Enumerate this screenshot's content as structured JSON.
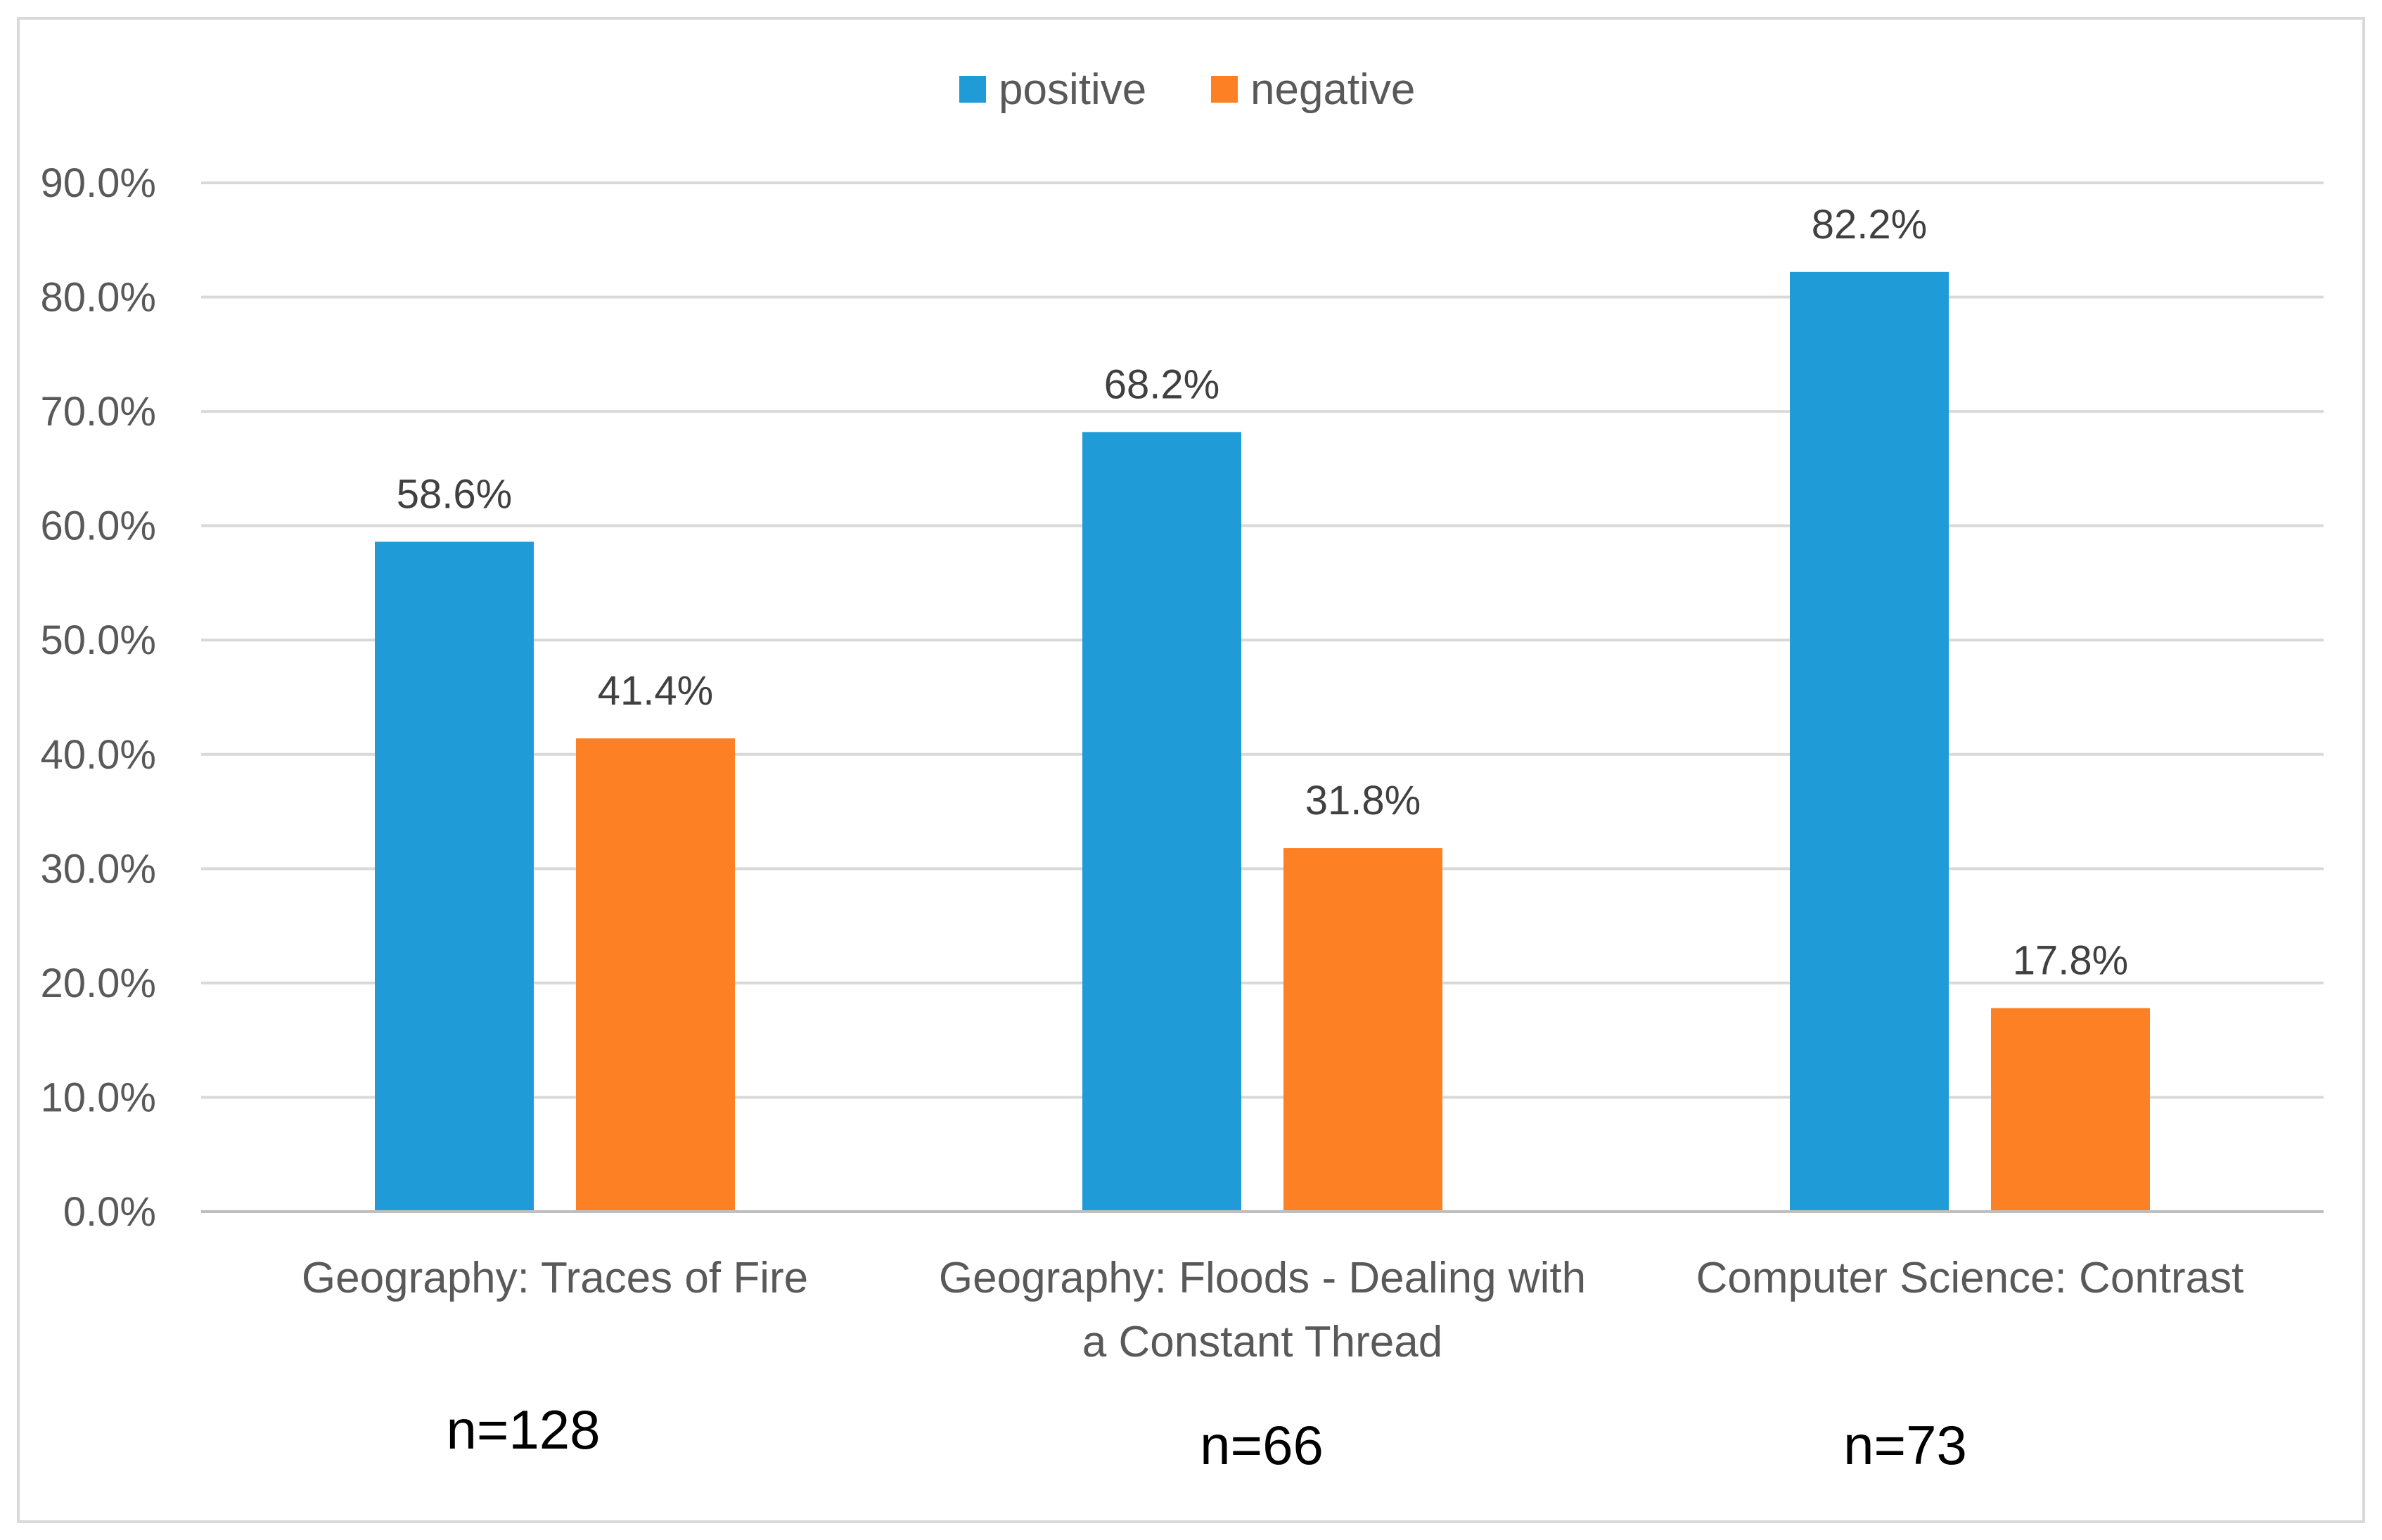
{
  "chart_data": {
    "type": "bar",
    "title": "",
    "xlabel": "",
    "ylabel": "",
    "ylim": [
      0,
      90
    ],
    "y_ticks": [
      "0.0%",
      "10.0%",
      "20.0%",
      "30.0%",
      "40.0%",
      "50.0%",
      "60.0%",
      "70.0%",
      "80.0%",
      "90.0%"
    ],
    "y_tick_values": [
      0,
      10,
      20,
      30,
      40,
      50,
      60,
      70,
      80,
      90
    ],
    "grid": true,
    "legend_position": "top-center",
    "categories": [
      [
        "Geography: Traces of Fire"
      ],
      [
        "Geography: Floods - Dealing with",
        "a Constant Thread"
      ],
      [
        "Computer Science: Contrast"
      ]
    ],
    "sample_sizes": [
      "n=128",
      "n=66",
      "n=73"
    ],
    "series": [
      {
        "name": "positive",
        "color": "#1f9bd7",
        "values": [
          58.6,
          68.2,
          82.2
        ],
        "labels": [
          "58.6%",
          "68.2%",
          "82.2%"
        ]
      },
      {
        "name": "negative",
        "color": "#fd8024",
        "values": [
          41.4,
          31.8,
          17.8
        ],
        "labels": [
          "41.4%",
          "31.8%",
          "17.8%"
        ]
      }
    ]
  }
}
